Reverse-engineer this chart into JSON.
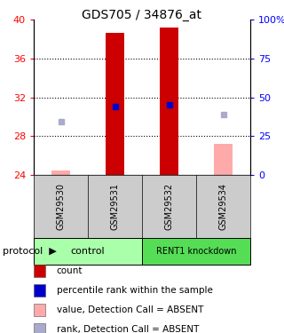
{
  "title": "GDS705 / 34876_at",
  "samples": [
    "GSM29530",
    "GSM29531",
    "GSM29532",
    "GSM29534"
  ],
  "ylim_left": [
    24,
    40
  ],
  "ylim_right": [
    0,
    100
  ],
  "yticks_left": [
    24,
    28,
    32,
    36,
    40
  ],
  "yticks_right": [
    0,
    25,
    50,
    75,
    100
  ],
  "ytick_labels_left": [
    "24",
    "28",
    "32",
    "36",
    "40"
  ],
  "ytick_labels_right": [
    "0",
    "25",
    "50",
    "75",
    "100%"
  ],
  "dotted_lines": [
    28,
    32,
    36
  ],
  "red_bars": {
    "GSM29530": null,
    "GSM29531": [
      24,
      38.6
    ],
    "GSM29532": [
      24,
      39.2
    ],
    "GSM29534": null
  },
  "pink_bars": {
    "GSM29530": [
      24,
      24.5
    ],
    "GSM29531": null,
    "GSM29532": null,
    "GSM29534": [
      24,
      27.2
    ]
  },
  "blue_squares": {
    "GSM29531": 31.0,
    "GSM29532": 31.2
  },
  "lavender_squares": {
    "GSM29530": 29.5,
    "GSM29534": 30.2
  },
  "group_colors": {
    "control": "#aaffaa",
    "RENT1 knockdown": "#55dd55"
  },
  "sample_label_area_color": "#cccccc",
  "bar_color_red": "#cc0000",
  "bar_color_pink": "#ffaaaa",
  "square_color_blue": "#0000cc",
  "square_color_lavender": "#aaaacc",
  "x_positions": [
    1,
    2,
    3,
    4
  ],
  "bar_width": 0.35,
  "legend_items": [
    {
      "color": "#cc0000",
      "label": "count"
    },
    {
      "color": "#0000cc",
      "label": "percentile rank within the sample"
    },
    {
      "color": "#ffaaaa",
      "label": "value, Detection Call = ABSENT"
    },
    {
      "color": "#aaaacc",
      "label": "rank, Detection Call = ABSENT"
    }
  ]
}
